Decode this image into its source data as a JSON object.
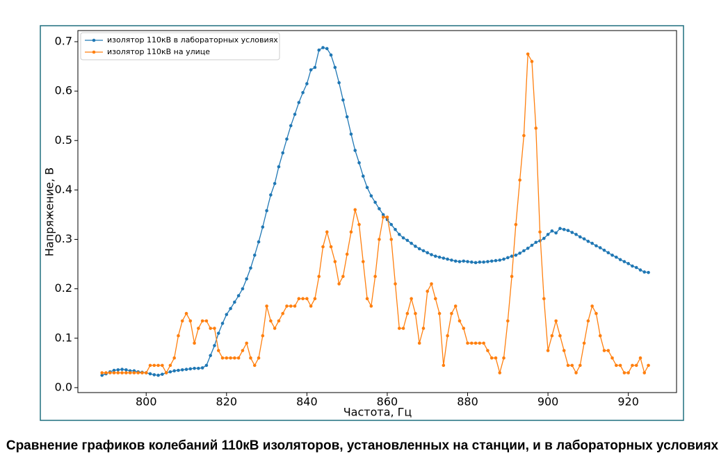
{
  "chart_data": {
    "type": "line",
    "caption": "Сравнение графиков колебаний 110кВ изоляторов, установленных на станции, и в лабораторных условиях",
    "x_label": "Частота, Гц",
    "y_label": "Напряжение, В",
    "x": [
      789,
      790,
      791,
      792,
      793,
      794,
      795,
      796,
      797,
      798,
      799,
      800,
      801,
      802,
      803,
      804,
      805,
      806,
      807,
      808,
      809,
      810,
      811,
      812,
      813,
      814,
      815,
      816,
      817,
      818,
      819,
      820,
      821,
      822,
      823,
      824,
      825,
      826,
      827,
      828,
      829,
      830,
      831,
      832,
      833,
      834,
      835,
      836,
      837,
      838,
      839,
      840,
      841,
      842,
      843,
      844,
      845,
      846,
      847,
      848,
      849,
      850,
      851,
      852,
      853,
      854,
      855,
      856,
      857,
      858,
      859,
      860,
      861,
      862,
      863,
      864,
      865,
      866,
      867,
      868,
      869,
      870,
      871,
      872,
      873,
      874,
      875,
      876,
      877,
      878,
      879,
      880,
      881,
      882,
      883,
      884,
      885,
      886,
      887,
      888,
      889,
      890,
      891,
      892,
      893,
      894,
      895,
      896,
      897,
      898,
      899,
      900,
      901,
      902,
      903,
      904,
      905,
      906,
      907,
      908,
      909,
      910,
      911,
      912,
      913,
      914,
      915,
      916,
      917,
      918,
      919,
      920,
      921,
      922,
      923,
      924,
      925
    ],
    "series": [
      {
        "name": "изолятор 110кВ в лабораторных условиях",
        "color": "#1f77b4",
        "values": [
          0.025,
          0.028,
          0.032,
          0.035,
          0.036,
          0.037,
          0.036,
          0.034,
          0.034,
          0.032,
          0.031,
          0.03,
          0.028,
          0.026,
          0.025,
          0.027,
          0.03,
          0.032,
          0.034,
          0.035,
          0.036,
          0.037,
          0.038,
          0.039,
          0.039,
          0.04,
          0.045,
          0.065,
          0.085,
          0.11,
          0.13,
          0.148,
          0.16,
          0.173,
          0.186,
          0.2,
          0.22,
          0.242,
          0.268,
          0.295,
          0.325,
          0.358,
          0.39,
          0.413,
          0.447,
          0.475,
          0.503,
          0.53,
          0.553,
          0.577,
          0.597,
          0.615,
          0.643,
          0.648,
          0.683,
          0.688,
          0.686,
          0.673,
          0.648,
          0.617,
          0.582,
          0.548,
          0.513,
          0.48,
          0.455,
          0.428,
          0.405,
          0.388,
          0.375,
          0.362,
          0.35,
          0.34,
          0.33,
          0.32,
          0.31,
          0.303,
          0.298,
          0.292,
          0.286,
          0.281,
          0.277,
          0.273,
          0.269,
          0.266,
          0.264,
          0.262,
          0.26,
          0.258,
          0.256,
          0.255,
          0.256,
          0.255,
          0.254,
          0.253,
          0.254,
          0.254,
          0.255,
          0.256,
          0.257,
          0.258,
          0.26,
          0.263,
          0.266,
          0.268,
          0.272,
          0.277,
          0.282,
          0.288,
          0.294,
          0.297,
          0.302,
          0.31,
          0.317,
          0.313,
          0.322,
          0.32,
          0.318,
          0.314,
          0.31,
          0.305,
          0.301,
          0.296,
          0.292,
          0.287,
          0.283,
          0.278,
          0.273,
          0.268,
          0.264,
          0.259,
          0.255,
          0.251,
          0.246,
          0.243,
          0.238,
          0.234,
          0.233
        ]
      },
      {
        "name": "изолятор 110кВ на улице",
        "color": "#ff7f0e",
        "values": [
          0.03,
          0.03,
          0.03,
          0.03,
          0.03,
          0.03,
          0.03,
          0.03,
          0.03,
          0.03,
          0.03,
          0.03,
          0.045,
          0.045,
          0.045,
          0.045,
          0.03,
          0.045,
          0.06,
          0.105,
          0.135,
          0.15,
          0.135,
          0.09,
          0.12,
          0.135,
          0.135,
          0.12,
          0.12,
          0.075,
          0.06,
          0.06,
          0.06,
          0.06,
          0.06,
          0.075,
          0.09,
          0.06,
          0.045,
          0.06,
          0.105,
          0.165,
          0.135,
          0.12,
          0.135,
          0.15,
          0.165,
          0.165,
          0.165,
          0.18,
          0.18,
          0.18,
          0.165,
          0.18,
          0.225,
          0.285,
          0.315,
          0.285,
          0.255,
          0.21,
          0.225,
          0.27,
          0.315,
          0.36,
          0.33,
          0.255,
          0.18,
          0.165,
          0.225,
          0.3,
          0.345,
          0.345,
          0.3,
          0.21,
          0.12,
          0.12,
          0.15,
          0.18,
          0.15,
          0.09,
          0.12,
          0.195,
          0.21,
          0.18,
          0.15,
          0.045,
          0.105,
          0.15,
          0.165,
          0.135,
          0.12,
          0.09,
          0.09,
          0.09,
          0.09,
          0.09,
          0.075,
          0.06,
          0.06,
          0.03,
          0.06,
          0.135,
          0.225,
          0.33,
          0.42,
          0.51,
          0.675,
          0.66,
          0.525,
          0.315,
          0.18,
          0.075,
          0.105,
          0.135,
          0.105,
          0.075,
          0.045,
          0.045,
          0.03,
          0.045,
          0.09,
          0.135,
          0.165,
          0.15,
          0.105,
          0.075,
          0.075,
          0.06,
          0.045,
          0.045,
          0.03,
          0.03,
          0.045,
          0.045,
          0.06,
          0.03,
          0.045
        ]
      }
    ],
    "xlim": [
      783,
      932
    ],
    "xticks": [
      800,
      820,
      840,
      860,
      880,
      900,
      920
    ],
    "ylim": [
      -0.01,
      0.7225
    ],
    "yticks": [
      {
        "value": 0,
        "label": "0.0"
      },
      0.1,
      0.2,
      0.3,
      0.4,
      0.5,
      0.6,
      0.7
    ],
    "legend": "upper left",
    "grid": false
  }
}
